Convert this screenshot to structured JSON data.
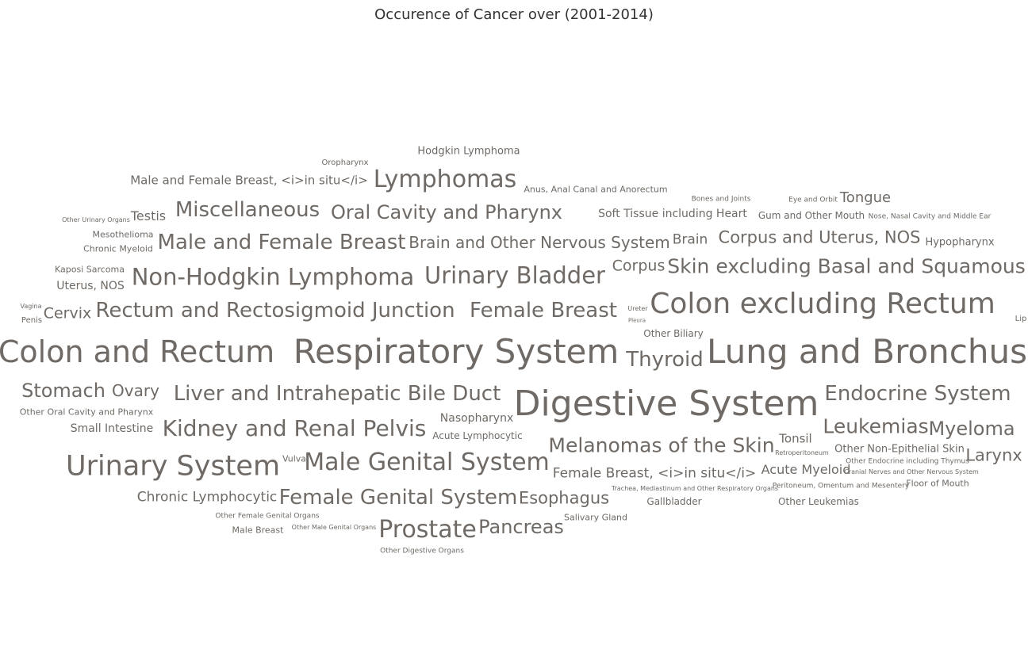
{
  "title": "Occurence of Cancer over (2001-2014)",
  "colors": {
    "title": "#333333",
    "word": "#6f6a65"
  },
  "words": [
    {
      "text": "Hodgkin Lymphoma",
      "weight": 13
    },
    {
      "text": "Oropharynx",
      "weight": 10
    },
    {
      "text": "Male and Female Breast, <i>in situ</i>",
      "weight": 15
    },
    {
      "text": "Lymphomas",
      "weight": 30
    },
    {
      "text": "Anus, Anal Canal and Anorectum",
      "weight": 11
    },
    {
      "text": "Bones and Joints",
      "weight": 9
    },
    {
      "text": "Eye and Orbit",
      "weight": 9
    },
    {
      "text": "Tongue",
      "weight": 18
    },
    {
      "text": "Other Urinary Organs",
      "weight": 8
    },
    {
      "text": "Testis",
      "weight": 16
    },
    {
      "text": "Miscellaneous",
      "weight": 26
    },
    {
      "text": "Oral Cavity and Pharynx",
      "weight": 24
    },
    {
      "text": "Soft Tissue including Heart",
      "weight": 14
    },
    {
      "text": "Gum and Other Mouth",
      "weight": 12
    },
    {
      "text": "Nose, Nasal Cavity and Middle Ear",
      "weight": 9
    },
    {
      "text": "Mesothelioma",
      "weight": 11
    },
    {
      "text": "Male and Female Breast",
      "weight": 26
    },
    {
      "text": "Brain and Other Nervous System",
      "weight": 20
    },
    {
      "text": "Brain",
      "weight": 17
    },
    {
      "text": "Corpus and Uterus, NOS",
      "weight": 21
    },
    {
      "text": "Hypopharynx",
      "weight": 13
    },
    {
      "text": "Chronic Myeloid",
      "weight": 11
    },
    {
      "text": "Kaposi Sarcoma",
      "weight": 11
    },
    {
      "text": "Non-Hodgkin Lymphoma",
      "weight": 29
    },
    {
      "text": "Urinary Bladder",
      "weight": 29
    },
    {
      "text": "Corpus",
      "weight": 19
    },
    {
      "text": "Skin excluding Basal and Squamous",
      "weight": 25
    },
    {
      "text": "Uterus, NOS",
      "weight": 14
    },
    {
      "text": "Vagina",
      "weight": 8
    },
    {
      "text": "Cervix",
      "weight": 19
    },
    {
      "text": "Rectum and Rectosigmoid Junction",
      "weight": 26
    },
    {
      "text": "Female Breast",
      "weight": 26
    },
    {
      "text": "Ureter",
      "weight": 8
    },
    {
      "text": "Colon excluding Rectum",
      "weight": 36
    },
    {
      "text": "Penis",
      "weight": 10
    },
    {
      "text": "Pleura",
      "weight": 7
    },
    {
      "text": "Other Biliary",
      "weight": 12
    },
    {
      "text": "Lip",
      "weight": 10
    },
    {
      "text": "Colon and Rectum",
      "weight": 38
    },
    {
      "text": "Respiratory System",
      "weight": 42
    },
    {
      "text": "Thyroid",
      "weight": 26
    },
    {
      "text": "Lung and Bronchus",
      "weight": 42
    },
    {
      "text": "Stomach",
      "weight": 24
    },
    {
      "text": "Ovary",
      "weight": 20
    },
    {
      "text": "Liver and Intrahepatic Bile Duct",
      "weight": 26
    },
    {
      "text": "Digestive System",
      "weight": 44
    },
    {
      "text": "Endocrine System",
      "weight": 26
    },
    {
      "text": "Other Oral Cavity and Pharynx",
      "weight": 11
    },
    {
      "text": "Nasopharynx",
      "weight": 14
    },
    {
      "text": "Leukemias",
      "weight": 25
    },
    {
      "text": "Myeloma",
      "weight": 24
    },
    {
      "text": "Small Intestine",
      "weight": 14
    },
    {
      "text": "Kidney and Renal Pelvis",
      "weight": 28
    },
    {
      "text": "Acute Lymphocytic",
      "weight": 12
    },
    {
      "text": "Melanomas of the Skin",
      "weight": 25
    },
    {
      "text": "Tonsil",
      "weight": 15
    },
    {
      "text": "Other Non-Epithelial Skin",
      "weight": 13
    },
    {
      "text": "Retroperitoneum",
      "weight": 8
    },
    {
      "text": "Larynx",
      "weight": 21
    },
    {
      "text": "Urinary System",
      "weight": 35
    },
    {
      "text": "Vulva",
      "weight": 11
    },
    {
      "text": "Male Genital System",
      "weight": 30
    },
    {
      "text": "Acute Myeloid",
      "weight": 16
    },
    {
      "text": "Other Endocrine including Thymus",
      "weight": 9
    },
    {
      "text": "Female Breast, <i>in situ</i>",
      "weight": 17
    },
    {
      "text": "Cranial Nerves and Other Nervous System",
      "weight": 8
    },
    {
      "text": "Trachea, Mediastinum and Other Respiratory Organs",
      "weight": 8
    },
    {
      "text": "Peritoneum, Omentum and Mesentery",
      "weight": 9
    },
    {
      "text": "Floor of Mouth",
      "weight": 11
    },
    {
      "text": "Chronic Lymphocytic",
      "weight": 17
    },
    {
      "text": "Female Genital System",
      "weight": 26
    },
    {
      "text": "Esophagus",
      "weight": 21
    },
    {
      "text": "Gallbladder",
      "weight": 12
    },
    {
      "text": "Other Leukemias",
      "weight": 12
    },
    {
      "text": "Other Female Genital Organs",
      "weight": 9
    },
    {
      "text": "Salivary Gland",
      "weight": 11
    },
    {
      "text": "Male Breast",
      "weight": 11
    },
    {
      "text": "Other Male Genital Organs",
      "weight": 8
    },
    {
      "text": "Prostate",
      "weight": 30
    },
    {
      "text": "Pancreas",
      "weight": 24
    },
    {
      "text": "Other Digestive Organs",
      "weight": 9
    }
  ]
}
